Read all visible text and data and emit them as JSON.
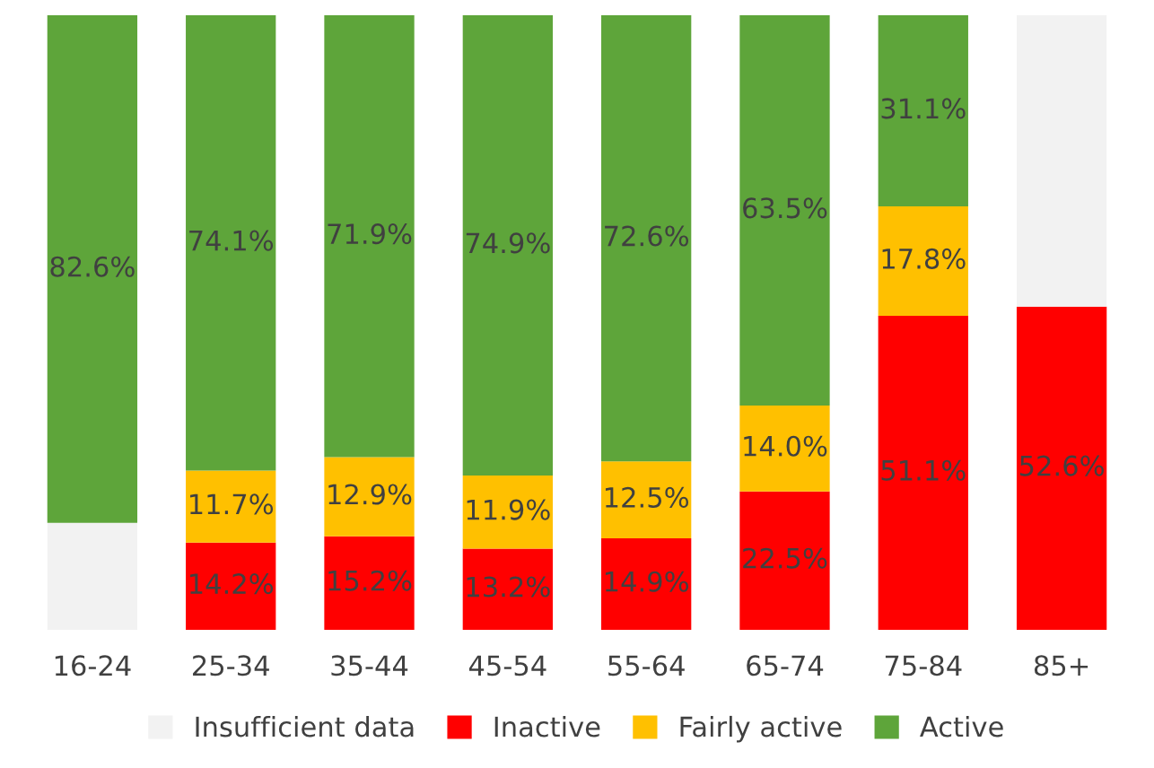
{
  "chart_data": {
    "type": "bar",
    "stacked": true,
    "categories": [
      "16-24",
      "25-34",
      "35-44",
      "45-54",
      "55-64",
      "65-74",
      "75-84",
      "85+"
    ],
    "ylim": [
      0,
      100
    ],
    "tick_labels": "x",
    "legend": "bottom",
    "grid": false,
    "series": [
      {
        "name": "Insufficient data",
        "color": "#f2f2f2",
        "values": [
          17.4,
          null,
          null,
          null,
          null,
          null,
          null,
          null
        ],
        "value_labels": [
          null,
          null,
          null,
          null,
          null,
          null,
          null,
          null
        ]
      },
      {
        "name": "Inactive",
        "color": "#ff0000",
        "values": [
          null,
          14.2,
          15.2,
          13.2,
          14.9,
          22.5,
          51.1,
          52.6
        ],
        "value_labels": [
          null,
          "14.2%",
          "15.2%",
          "13.2%",
          "14.9%",
          "22.5%",
          "51.1%",
          "52.6%"
        ]
      },
      {
        "name": "Fairly active",
        "color": "#ffc000",
        "values": [
          null,
          11.7,
          12.9,
          11.9,
          12.5,
          14.0,
          17.8,
          null
        ],
        "value_labels": [
          null,
          "11.7%",
          "12.9%",
          "11.9%",
          "12.5%",
          "14.0%",
          "17.8%",
          null
        ]
      },
      {
        "name": "Active",
        "color": "#5ea53a",
        "values": [
          82.6,
          74.1,
          71.9,
          74.9,
          72.6,
          63.5,
          31.1,
          null
        ],
        "value_labels": [
          "82.6%",
          "74.1%",
          "71.9%",
          "74.9%",
          "72.6%",
          "63.5%",
          "31.1%",
          null
        ]
      },
      {
        "color": "#f2f2f2",
        "values": [
          null,
          null,
          null,
          null,
          null,
          null,
          null,
          47.4
        ],
        "value_labels": [
          null,
          null,
          null,
          null,
          null,
          null,
          null,
          null
        ]
      }
    ]
  }
}
